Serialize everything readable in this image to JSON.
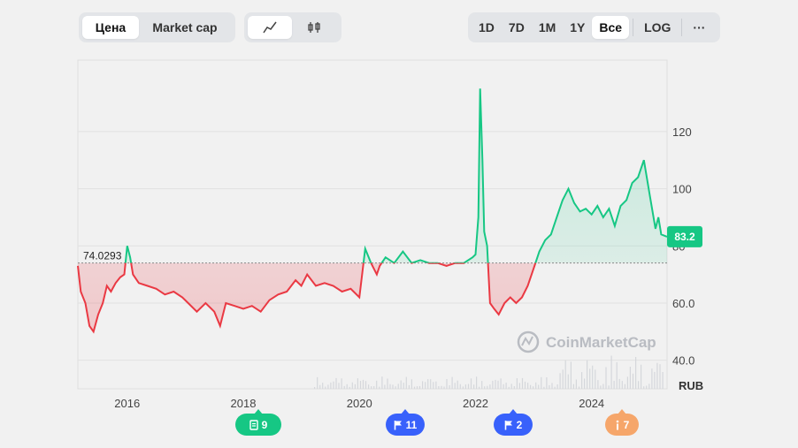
{
  "toolbar": {
    "metric_tabs": [
      "Цена",
      "Market cap"
    ],
    "range_tabs": [
      "1D",
      "7D",
      "1M",
      "1Y",
      "Все"
    ],
    "log_label": "LOG",
    "more_label": "···"
  },
  "colors": {
    "up": "#16c784",
    "down": "#ea3943",
    "accent": "#3861fb",
    "badge_doc": "#16c784",
    "badge_flag": "#3861fb",
    "badge_info": "#f6a66a"
  },
  "watermark": "CoinMarketCap",
  "events": [
    {
      "icon": "document-icon",
      "count": "9",
      "color": "#16c784"
    },
    {
      "icon": "flag-icon",
      "count": "11",
      "color": "#3861fb"
    },
    {
      "icon": "flag-icon",
      "count": "2",
      "color": "#3861fb"
    },
    {
      "icon": "info-icon",
      "count": "7",
      "color": "#f6a66a"
    }
  ],
  "chart_data": {
    "type": "area",
    "xlabel": "",
    "ylabel": "RUB",
    "currency_label": "RUB",
    "x_ticks": [
      "2016",
      "2018",
      "2020",
      "2022",
      "2024"
    ],
    "y_ticks": [
      "40.0",
      "60.0",
      "80",
      "100",
      "120"
    ],
    "ylim": [
      30,
      145
    ],
    "xlim": [
      2015.15,
      2025.3
    ],
    "baseline_value": 74.0293,
    "baseline_label": "74.0293",
    "current_value": 83.2,
    "current_label": "83.2",
    "grid": true,
    "series": [
      {
        "x": [
          2015.15,
          2015.2,
          2015.28,
          2015.35,
          2015.42,
          2015.5,
          2015.58,
          2015.65,
          2015.72,
          2015.8,
          2015.88,
          2015.95,
          2016.0,
          2016.05,
          2016.1,
          2016.2,
          2016.35,
          2016.5,
          2016.65,
          2016.8,
          2016.95,
          2017.05,
          2017.2,
          2017.35,
          2017.5,
          2017.6,
          2017.7,
          2017.85,
          2018.0,
          2018.15,
          2018.3,
          2018.45,
          2018.6,
          2018.75,
          2018.9,
          2019.0,
          2019.1,
          2019.25,
          2019.4,
          2019.55,
          2019.7,
          2019.85,
          2020.0,
          2020.1,
          2020.2,
          2020.25,
          2020.3,
          2020.35,
          2020.45,
          2020.6,
          2020.75,
          2020.9,
          2021.05,
          2021.2,
          2021.35,
          2021.5,
          2021.65,
          2021.8,
          2021.95,
          2022.0,
          2022.05,
          2022.08,
          2022.12,
          2022.15,
          2022.2,
          2022.25,
          2022.32,
          2022.4,
          2022.5,
          2022.6,
          2022.7,
          2022.8,
          2022.9,
          2023.0,
          2023.1,
          2023.2,
          2023.3,
          2023.4,
          2023.5,
          2023.6,
          2023.7,
          2023.8,
          2023.9,
          2024.0,
          2024.1,
          2024.2,
          2024.3,
          2024.4,
          2024.5,
          2024.6,
          2024.7,
          2024.8,
          2024.9,
          2025.0,
          2025.05,
          2025.1,
          2025.15,
          2025.2,
          2025.3
        ],
        "y": [
          73.0,
          64.0,
          60.0,
          52.0,
          50.0,
          56.0,
          60.0,
          66.0,
          64.0,
          67.0,
          69.0,
          70.0,
          80.0,
          76.0,
          70.0,
          67.0,
          66.0,
          65.0,
          63.0,
          64.0,
          62.0,
          60.0,
          57.0,
          60.0,
          57.0,
          52.0,
          60.0,
          59.0,
          58.0,
          59.0,
          57.0,
          61.0,
          63.0,
          64.0,
          68.0,
          66.0,
          70.0,
          66.0,
          67.0,
          66.0,
          64.0,
          65.0,
          62.0,
          79.0,
          74.0,
          72.0,
          70.0,
          73.0,
          76.0,
          74.0,
          78.0,
          74.0,
          75.0,
          74.0,
          74.0,
          73.0,
          74.0,
          74.0,
          76.0,
          77.0,
          90.0,
          135.0,
          110.0,
          85.0,
          80.0,
          60.0,
          58.0,
          56.0,
          60.0,
          62.0,
          60.0,
          62.0,
          66.0,
          72.0,
          78.0,
          82.0,
          84.0,
          90.0,
          96.0,
          100.0,
          95.0,
          92.0,
          93.0,
          91.0,
          94.0,
          90.0,
          93.0,
          87.0,
          94.0,
          96.0,
          102.0,
          104.0,
          110.0,
          98.0,
          92.0,
          86.0,
          90.0,
          84.0,
          83.2
        ]
      }
    ]
  }
}
